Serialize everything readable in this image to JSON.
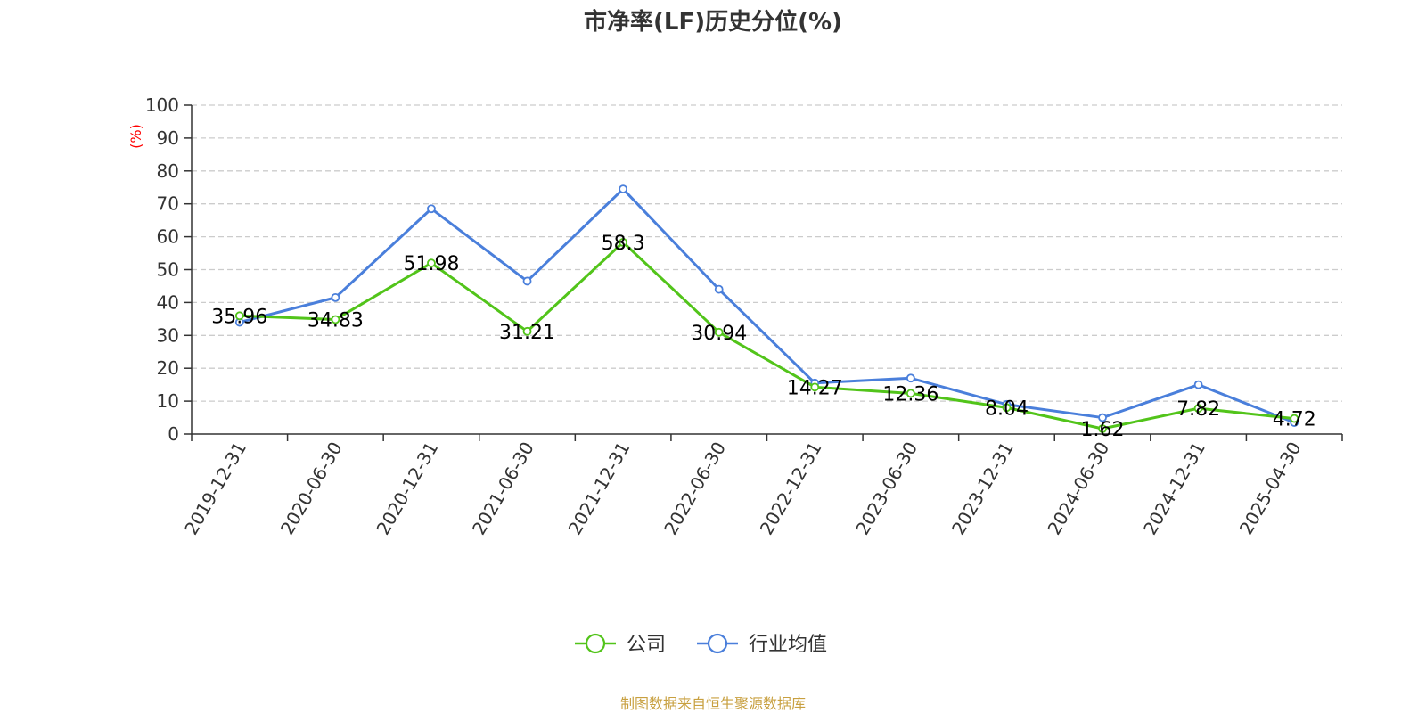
{
  "title": "市净率(LF)历史分位(%)",
  "source_note": "制图数据来自恒生聚源数据库",
  "chart_data": {
    "type": "line",
    "title": "市净率(LF)历史分位(%)",
    "ylabel": "(%)",
    "xlabel": "",
    "ylim": [
      0,
      100
    ],
    "yticks": [
      0,
      10,
      20,
      30,
      40,
      50,
      60,
      70,
      80,
      90,
      100
    ],
    "grid": true,
    "legend_position": "bottom-center",
    "categories": [
      "2019-12-31",
      "2020-06-30",
      "2020-12-31",
      "2021-06-30",
      "2021-12-31",
      "2022-06-30",
      "2022-12-31",
      "2023-06-30",
      "2023-12-31",
      "2024-06-30",
      "2024-12-31",
      "2025-04-30"
    ],
    "series": [
      {
        "name": "公司",
        "color": "#52c41a",
        "show_labels": true,
        "values": [
          35.96,
          34.83,
          51.98,
          31.21,
          58.3,
          30.94,
          14.27,
          12.36,
          8.04,
          1.62,
          7.82,
          4.72
        ],
        "labels": [
          "35.96",
          "34.83",
          "51.98",
          "31.21",
          "58.3",
          "30.94",
          "14.27",
          "12.36",
          "8.04",
          "1.62",
          "7.82",
          "4.72"
        ]
      },
      {
        "name": "行业均值",
        "color": "#4a7fdb",
        "show_labels": false,
        "values": [
          34,
          41.5,
          68.5,
          46.5,
          74.5,
          44,
          15.5,
          17,
          9,
          5,
          15,
          3.5
        ]
      }
    ],
    "colors": {
      "title": "#333333",
      "axis": "#333333",
      "grid": "#cccccc",
      "unit": "#ff0000",
      "source": "#c8a040"
    }
  }
}
